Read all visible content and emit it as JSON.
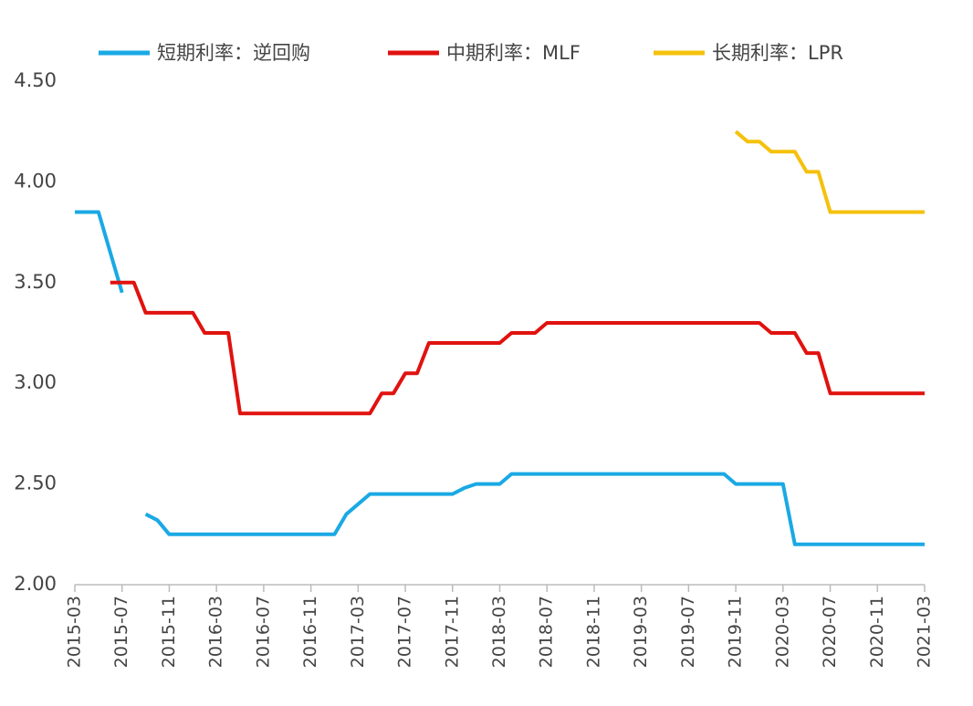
{
  "chart_data": {
    "type": "line",
    "x": [
      "2015-03",
      null,
      null,
      null,
      "2015-07",
      null,
      null,
      null,
      "2015-11",
      null,
      null,
      null,
      "2016-03",
      null,
      null,
      null,
      "2016-07",
      null,
      null,
      null,
      "2016-11",
      null,
      null,
      null,
      "2017-03",
      null,
      null,
      null,
      "2017-07",
      null,
      null,
      null,
      "2017-11",
      null,
      null,
      null,
      "2018-03",
      null,
      null,
      null,
      "2018-07",
      null,
      null,
      null,
      "2018-11",
      null,
      null,
      null,
      "2019-03",
      null,
      null,
      null,
      "2019-07",
      null,
      null,
      null,
      "2019-11",
      null,
      null,
      null,
      "2020-03",
      null,
      null,
      null,
      "2020-07",
      null,
      null,
      null,
      "2020-11",
      null,
      null,
      null,
      "2021-03"
    ],
    "series": [
      {
        "name": "短期利率：逆回购",
        "color": "#1aa9e4",
        "values": [
          3.85,
          3.85,
          3.85,
          3.65,
          3.45,
          null,
          2.35,
          2.32,
          2.25,
          2.25,
          2.25,
          2.25,
          2.25,
          2.25,
          2.25,
          2.25,
          2.25,
          2.25,
          2.25,
          2.25,
          2.25,
          2.25,
          2.25,
          2.35,
          2.4,
          2.45,
          2.45,
          2.45,
          2.45,
          2.45,
          2.45,
          2.45,
          2.45,
          2.48,
          2.5,
          2.5,
          2.5,
          2.55,
          2.55,
          2.55,
          2.55,
          2.55,
          2.55,
          2.55,
          2.55,
          2.55,
          2.55,
          2.55,
          2.55,
          2.55,
          2.55,
          2.55,
          2.55,
          2.55,
          2.55,
          2.55,
          2.5,
          2.5,
          2.5,
          2.5,
          2.5,
          2.2,
          2.2,
          2.2,
          2.2,
          2.2,
          2.2,
          2.2,
          2.2,
          2.2,
          2.2,
          2.2,
          2.2
        ]
      },
      {
        "name": "中期利率：MLF",
        "color": "#e0120f",
        "values": [
          null,
          null,
          null,
          3.5,
          3.5,
          3.5,
          3.35,
          3.35,
          3.35,
          3.35,
          3.35,
          3.25,
          3.25,
          3.25,
          2.85,
          2.85,
          2.85,
          2.85,
          2.85,
          2.85,
          2.85,
          2.85,
          2.85,
          2.85,
          2.85,
          2.85,
          2.95,
          2.95,
          3.05,
          3.05,
          3.2,
          3.2,
          3.2,
          3.2,
          3.2,
          3.2,
          3.2,
          3.25,
          3.25,
          3.25,
          3.3,
          3.3,
          3.3,
          3.3,
          3.3,
          3.3,
          3.3,
          3.3,
          3.3,
          3.3,
          3.3,
          3.3,
          3.3,
          3.3,
          3.3,
          3.3,
          3.3,
          3.3,
          3.3,
          3.25,
          3.25,
          3.25,
          3.15,
          3.15,
          2.95,
          2.95,
          2.95,
          2.95,
          2.95,
          2.95,
          2.95,
          2.95,
          2.95
        ]
      },
      {
        "name": "长期利率：LPR",
        "color": "#f5c10c",
        "values": [
          null,
          null,
          null,
          null,
          null,
          null,
          null,
          null,
          null,
          null,
          null,
          null,
          null,
          null,
          null,
          null,
          null,
          null,
          null,
          null,
          null,
          null,
          null,
          null,
          null,
          null,
          null,
          null,
          null,
          null,
          null,
          null,
          null,
          null,
          null,
          null,
          null,
          null,
          null,
          null,
          null,
          null,
          null,
          null,
          null,
          null,
          null,
          null,
          null,
          null,
          null,
          null,
          null,
          null,
          null,
          null,
          4.25,
          4.2,
          4.2,
          4.15,
          4.15,
          4.15,
          4.05,
          4.05,
          3.85,
          3.85,
          3.85,
          3.85,
          3.85,
          3.85,
          3.85,
          3.85,
          3.85
        ]
      }
    ],
    "ylim": [
      2.0,
      4.5
    ],
    "yticks": [
      {
        "value": 2.0,
        "label": "2.00"
      },
      {
        "value": 2.5,
        "label": "2.50"
      },
      {
        "value": 3.0,
        "label": "3.00"
      },
      {
        "value": 3.5,
        "label": "3.50"
      },
      {
        "value": 4.0,
        "label": "4.00"
      },
      {
        "value": 4.5,
        "label": "4.50"
      }
    ],
    "grid": false,
    "legend": "top"
  }
}
